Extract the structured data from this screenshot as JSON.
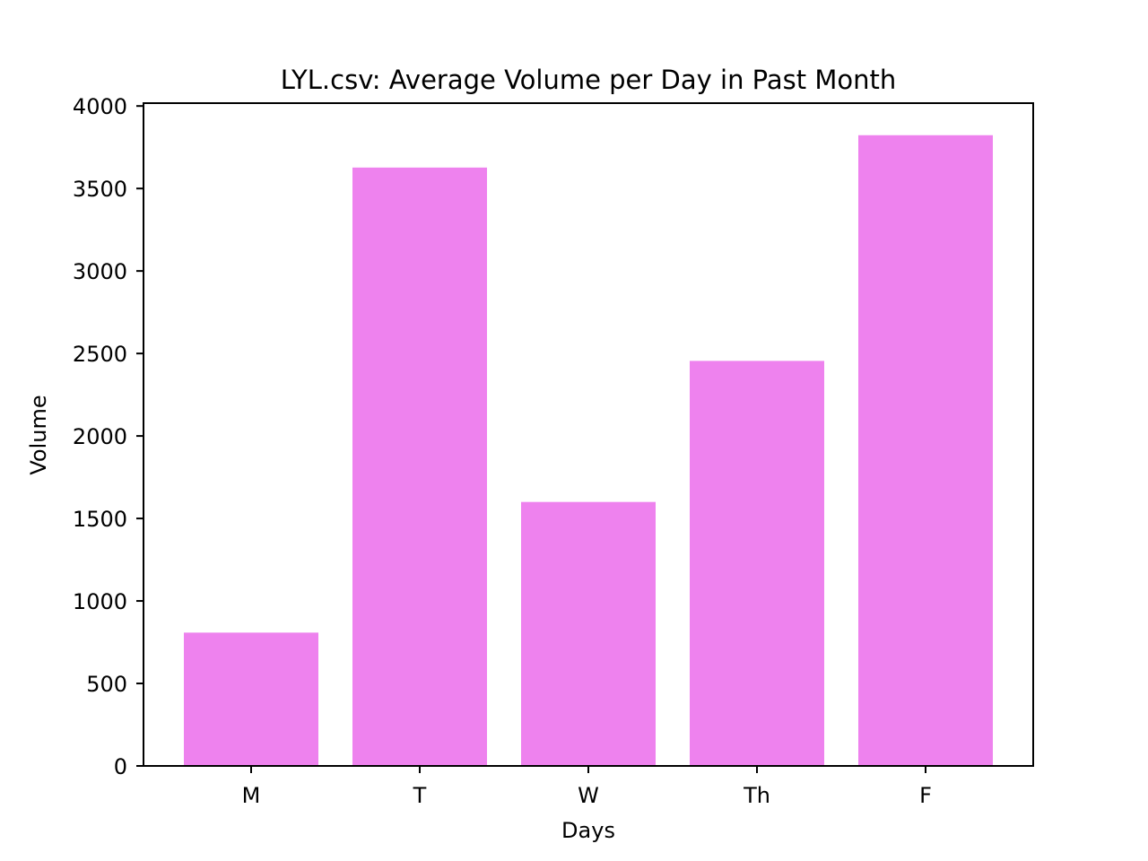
{
  "chart_data": {
    "type": "bar",
    "title": "LYL.csv: Average Volume per Day in Past Month",
    "xlabel": "Days",
    "ylabel": "Volume",
    "categories": [
      "M",
      "T",
      "W",
      "Th",
      "F"
    ],
    "values": [
      808,
      3627,
      1600,
      2455,
      3823
    ],
    "ylim": [
      0,
      4000
    ],
    "yticks": [
      0,
      500,
      1000,
      1500,
      2000,
      2500,
      3000,
      3500,
      4000
    ],
    "bar_color": "#ee82ee",
    "grid": false,
    "legend": "none"
  }
}
